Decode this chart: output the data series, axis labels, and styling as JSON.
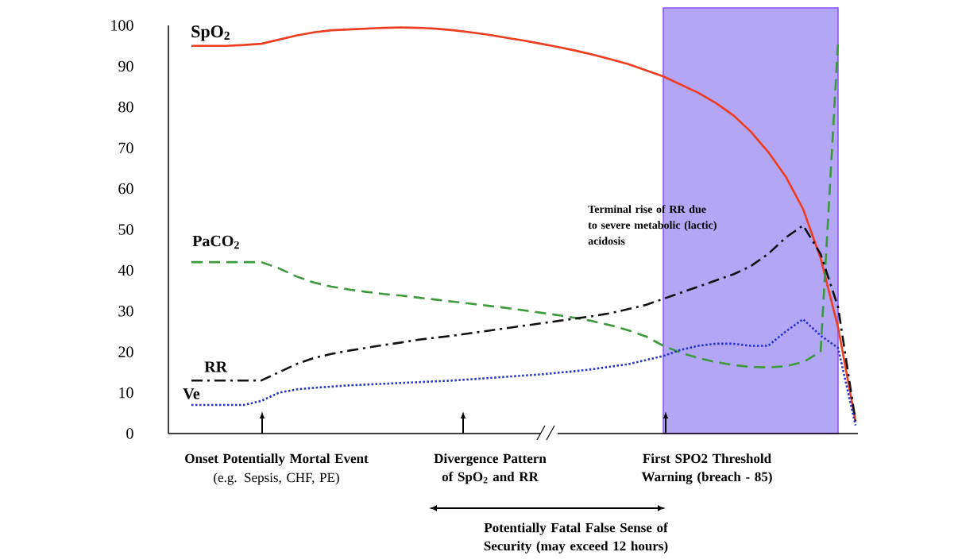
{
  "chart_data": {
    "type": "line",
    "categories": [
      null,
      null,
      null,
      null,
      null,
      null,
      null,
      null,
      null,
      null,
      null,
      null,
      null,
      null,
      null,
      null,
      null,
      null,
      null,
      null,
      null,
      null,
      null,
      null,
      null,
      null,
      null,
      null,
      null,
      null,
      null,
      null,
      null,
      null,
      null,
      null,
      null,
      null,
      null
    ],
    "ylim": [
      0,
      100
    ],
    "yticks": [
      0,
      10,
      20,
      30,
      40,
      50,
      60,
      70,
      80,
      90,
      100
    ],
    "tick_labels": "y",
    "series": [
      {
        "name": "SpO$_{2}$",
        "color": "#f03c1e",
        "line_style": "solid",
        "values": [
          95,
          95,
          95,
          95.2,
          95.5,
          96.5,
          97.5,
          98.3,
          98.8,
          99,
          99.2,
          99.4,
          99.5,
          99.4,
          99.2,
          98.8,
          98.3,
          97.7,
          97,
          96.3,
          95.5,
          94.7,
          93.8,
          92.8,
          91.7,
          90.5,
          89,
          87.5,
          85.5,
          83.5,
          81,
          78,
          74,
          69,
          63,
          55,
          43,
          26,
          3
        ]
      },
      {
        "name": "PaCO$_{2}$",
        "color": "#3a9a3a",
        "line_style": "dashed",
        "values": [
          42,
          42,
          42,
          42,
          42,
          40.5,
          38.5,
          37,
          36,
          35.3,
          34.7,
          34.2,
          33.8,
          33.3,
          32.8,
          32.3,
          31.8,
          31.3,
          30.8,
          30.2,
          29.6,
          29,
          28.3,
          27.5,
          26.5,
          25.3,
          23.8,
          21.5,
          19.8,
          18.5,
          17.5,
          16.8,
          16.3,
          16.2,
          16.5,
          17.5,
          20,
          96,
          null
        ]
      },
      {
        "name": "RR",
        "color": "#111111",
        "line_style": "dashdot",
        "values": [
          13,
          13,
          13,
          13,
          13,
          15,
          17,
          18.5,
          19.5,
          20.3,
          21,
          21.7,
          22.3,
          23,
          23.5,
          24,
          24.6,
          25.2,
          25.8,
          26.4,
          27,
          27.6,
          28.2,
          28.8,
          29.5,
          30.5,
          31.5,
          33,
          34.5,
          36,
          37.5,
          39,
          41,
          44,
          48,
          51,
          44,
          31,
          3
        ]
      },
      {
        "name": "Ve",
        "color": "#2233cc",
        "line_style": "dotted",
        "values": [
          7,
          7,
          7,
          7,
          8,
          10,
          10.8,
          11.2,
          11.5,
          11.8,
          12,
          12.2,
          12.4,
          12.6,
          12.8,
          13,
          13.3,
          13.6,
          13.9,
          14.2,
          14.5,
          14.9,
          15.3,
          15.8,
          16.4,
          17,
          18,
          19,
          20.5,
          21.5,
          22,
          22,
          21.5,
          21.5,
          25,
          28,
          24,
          21,
          2
        ]
      }
    ],
    "annotations": [
      "Onset Potentially Mortal Event",
      "(e.g. Sepsis, CHF, PE)",
      "Divergence Pattern of SpO$_{2}$ and RR",
      "First SPO2 Threshold Warning (breach - 85)",
      "Potentially Fatal False Sense of Security (may exceed 12 hours)",
      "Terminal rise of RR due to severe metabolic (lactic) acidosis"
    ]
  }
}
